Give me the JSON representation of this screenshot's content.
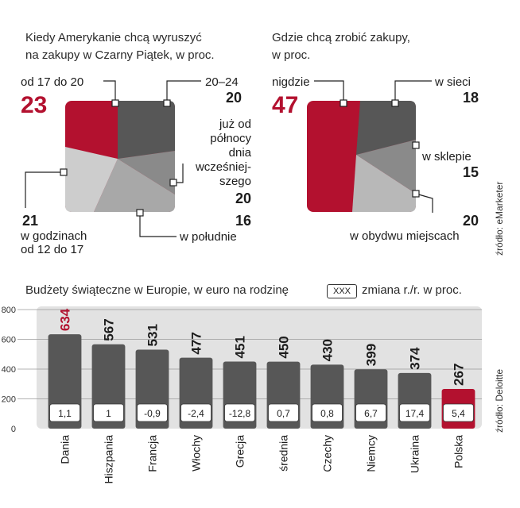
{
  "colors": {
    "red": "#b3112f",
    "dark": "#575757",
    "mid": "#8a8a8a",
    "light": "#bdbdbd",
    "pale": "#d4d4d4",
    "plot_bg": "#e2e2e2",
    "box": "#ffffff"
  },
  "pie1": {
    "title_l1": "Kiedy Amerykanie chcą wyruszyć",
    "title_l2": "na zakupy w Czarny Piątek, w proc.",
    "labels": {
      "a": "od 17 do 20",
      "b": "20–24",
      "c1": "już od",
      "c2": "północy",
      "c3": "dnia",
      "c4": "wcześniej-",
      "c5": "szego",
      "d": "w południe",
      "e1": "w godzinach",
      "e2": "od 12 do 17"
    },
    "values": {
      "a": "23",
      "b": "20",
      "c": "20",
      "d": "16",
      "e": "21"
    }
  },
  "pie2": {
    "title_l1": "Gdzie chcą zrobić zakupy,",
    "title_l2": "w proc.",
    "labels": {
      "a": "nigdzie",
      "b": "w sieci",
      "c": "w sklepie",
      "d": "w obydwu miejscach"
    },
    "values": {
      "a": "47",
      "b": "18",
      "c": "15",
      "d": "20"
    }
  },
  "bars": {
    "title": "Budżety świąteczne w Europie, w euro na rodzinę",
    "legend_box": "XXX",
    "legend_text": "zmiana r./r. w proc."
  },
  "sources": {
    "pies": "źródło: eMarketer",
    "bars": "źródło: Deloitte"
  },
  "chart_data": [
    {
      "type": "pie",
      "title": "Kiedy Amerykanie chcą wyruszyć na zakupy w Czarny Piątek, w proc.",
      "categories": [
        "od 17 do 20",
        "20–24",
        "już od północy dnia wcześniejszego",
        "w południe",
        "w godzinach od 12 do 17"
      ],
      "values": [
        23,
        20,
        20,
        16,
        21
      ]
    },
    {
      "type": "pie",
      "title": "Gdzie chcą zrobić zakupy, w proc.",
      "categories": [
        "nigdzie",
        "w sieci",
        "w sklepie",
        "w obydwu miejscach"
      ],
      "values": [
        47,
        18,
        15,
        20
      ]
    },
    {
      "type": "bar",
      "title": "Budżety świąteczne w Europie, w euro na rodzinę",
      "categories": [
        "Dania",
        "Hiszpania",
        "Francja",
        "Włochy",
        "Grecja",
        "średnia",
        "Czechy",
        "Niemcy",
        "Ukraina",
        "Polska"
      ],
      "values": [
        634,
        567,
        531,
        477,
        451,
        450,
        430,
        399,
        374,
        267
      ],
      "changes": [
        "1,1",
        "1",
        "-0,9",
        "-2,4",
        "-12,8",
        "0,7",
        "0,8",
        "6,7",
        "17,4",
        "5,4"
      ],
      "highlight": [
        "Dania",
        "Polska"
      ],
      "yticks": [
        0,
        200,
        400,
        600,
        800
      ],
      "ylim": [
        0,
        800
      ],
      "grid": true
    }
  ]
}
